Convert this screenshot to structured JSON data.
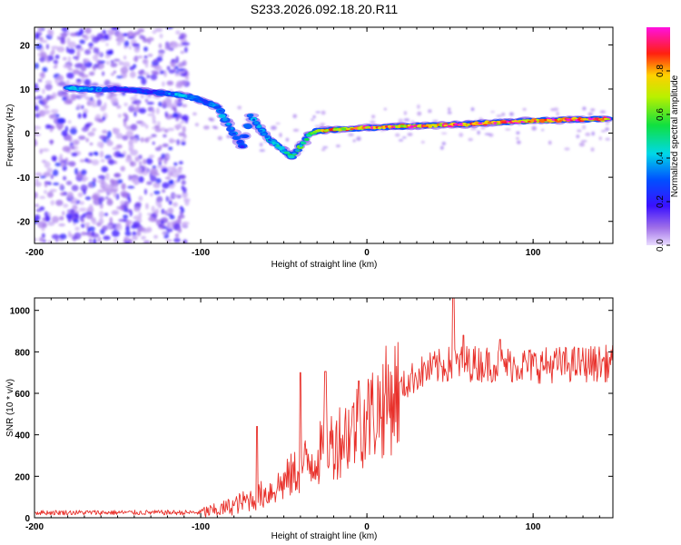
{
  "title": "S233.2026.092.18.20.R11",
  "colors": {
    "snr_line": "#e8302a",
    "axes": "#000000",
    "background": "#ffffff"
  },
  "chart_data": [
    {
      "type": "heatmap",
      "name": "spectrogram",
      "xlabel": "Height of straight line (km)",
      "ylabel": "Frequency (Hz)",
      "xlim": [
        -200,
        148
      ],
      "ylim": [
        -25,
        24
      ],
      "xticks": [
        -200,
        -100,
        0,
        100
      ],
      "yticks": [
        20,
        10,
        0,
        -10,
        -20
      ],
      "colorbar": {
        "label": "Normalized spectral amplitude",
        "range": [
          0.0,
          1.0
        ],
        "ticks": [
          "0.0",
          "0.2",
          "0.4",
          "0.6",
          "0.8"
        ],
        "colormap": "rainbow (violet-blue-cyan-green-yellow-red-magenta)"
      },
      "signal_track": [
        {
          "x": -180,
          "f": 10.2,
          "amp": 0.45
        },
        {
          "x": -170,
          "f": 10.0,
          "amp": 0.4
        },
        {
          "x": -160,
          "f": 9.8,
          "amp": 0.35
        },
        {
          "x": -150,
          "f": 10.0,
          "amp": 0.2
        },
        {
          "x": -120,
          "f": 9.0,
          "amp": 0.3
        },
        {
          "x": -110,
          "f": 8.5,
          "amp": 0.45
        },
        {
          "x": -100,
          "f": 7.5,
          "amp": 0.3
        },
        {
          "x": -90,
          "f": 6.0,
          "amp": 0.35
        },
        {
          "x": -85,
          "f": 3.0,
          "amp": 0.4
        },
        {
          "x": -80,
          "f": 0.0,
          "amp": 0.35
        },
        {
          "x": -75,
          "f": -3.0,
          "amp": 0.3
        },
        {
          "x": -70,
          "f": 4.0,
          "amp": 0.4
        },
        {
          "x": -65,
          "f": 1.5,
          "amp": 0.45
        },
        {
          "x": -60,
          "f": -1.0,
          "amp": 0.4
        },
        {
          "x": -55,
          "f": -2.5,
          "amp": 0.45
        },
        {
          "x": -50,
          "f": -4.0,
          "amp": 0.5
        },
        {
          "x": -45,
          "f": -5.5,
          "amp": 0.5
        },
        {
          "x": -40,
          "f": -3.0,
          "amp": 0.55
        },
        {
          "x": -35,
          "f": -0.5,
          "amp": 0.6
        },
        {
          "x": -30,
          "f": 0.5,
          "amp": 0.7
        },
        {
          "x": -20,
          "f": 0.8,
          "amp": 0.8
        },
        {
          "x": -10,
          "f": 1.0,
          "amp": 0.85
        },
        {
          "x": 0,
          "f": 1.2,
          "amp": 0.9
        },
        {
          "x": 20,
          "f": 1.5,
          "amp": 0.9
        },
        {
          "x": 40,
          "f": 1.8,
          "amp": 0.9
        },
        {
          "x": 60,
          "f": 2.0,
          "amp": 0.92
        },
        {
          "x": 80,
          "f": 2.5,
          "amp": 0.93
        },
        {
          "x": 100,
          "f": 2.8,
          "amp": 0.95
        },
        {
          "x": 120,
          "f": 3.0,
          "amp": 0.95
        },
        {
          "x": 145,
          "f": 3.2,
          "amp": 0.97
        }
      ]
    },
    {
      "type": "line",
      "name": "snr",
      "xlabel": "Height of straight line (km)",
      "ylabel": "SNR (10 * v/v)",
      "xlim": [
        -200,
        148
      ],
      "ylim": [
        0,
        1060
      ],
      "xticks": [
        -200,
        -100,
        0,
        100
      ],
      "yticks": [
        0,
        200,
        400,
        600,
        800,
        1000
      ],
      "envelope": [
        {
          "x": -200,
          "y": 25
        },
        {
          "x": -150,
          "y": 25
        },
        {
          "x": -100,
          "y": 25
        },
        {
          "x": -90,
          "y": 35
        },
        {
          "x": -80,
          "y": 60
        },
        {
          "x": -70,
          "y": 90
        },
        {
          "x": -60,
          "y": 120
        },
        {
          "x": -50,
          "y": 170
        },
        {
          "x": -40,
          "y": 240
        },
        {
          "x": -30,
          "y": 300
        },
        {
          "x": -20,
          "y": 360
        },
        {
          "x": -10,
          "y": 420
        },
        {
          "x": 0,
          "y": 480
        },
        {
          "x": 10,
          "y": 550
        },
        {
          "x": 20,
          "y": 620
        },
        {
          "x": 30,
          "y": 690
        },
        {
          "x": 40,
          "y": 720
        },
        {
          "x": 50,
          "y": 740
        },
        {
          "x": 60,
          "y": 745
        },
        {
          "x": 80,
          "y": 740
        },
        {
          "x": 100,
          "y": 735
        },
        {
          "x": 120,
          "y": 740
        },
        {
          "x": 148,
          "y": 745
        }
      ],
      "spikes": [
        {
          "x": -66,
          "y": 440
        },
        {
          "x": -40,
          "y": 700
        },
        {
          "x": -25,
          "y": 705
        },
        {
          "x": -5,
          "y": 660
        },
        {
          "x": 52,
          "y": 1060
        },
        {
          "x": 58,
          "y": 880
        },
        {
          "x": 80,
          "y": 860
        }
      ]
    }
  ]
}
